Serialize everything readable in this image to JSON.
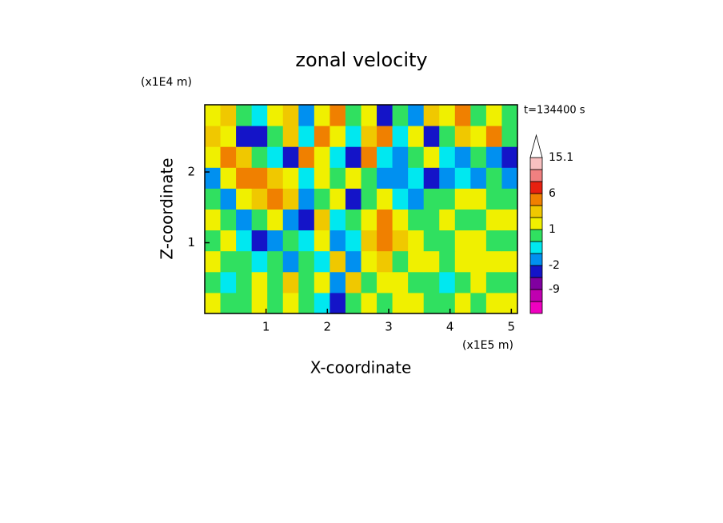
{
  "chart_data": {
    "type": "contour",
    "title": "zonal velocity",
    "time_label": "t=134400 s",
    "x_label": "X-coordinate",
    "x_unit": "(x1E5 m)",
    "y_label": "Z-coordinate",
    "y_unit": "(x1E4 m)",
    "xlim": [
      0,
      5.1
    ],
    "xticks": [
      1,
      2,
      3,
      4,
      5
    ],
    "ylim": [
      0,
      2.95
    ],
    "yticks": [
      1,
      2
    ],
    "levels": [
      -15,
      -12,
      -9,
      -5,
      -2,
      -1,
      0,
      1,
      2,
      3,
      6,
      9,
      12,
      15.1
    ],
    "colors": [
      "#f000c0",
      "#c000b0",
      "#8000a0",
      "#1414c8",
      "#0090f0",
      "#00e8f0",
      "#30e060",
      "#f0f000",
      "#f0c800",
      "#f08000",
      "#e82010",
      "#f08080",
      "#f8c0c0"
    ],
    "over_color": "#ffffff",
    "colorbar_ticks": [
      15.1,
      6,
      1,
      -2,
      -9
    ],
    "z": [
      [
        1.5,
        0.5,
        0.5,
        1.5,
        0.5,
        1.5,
        0.5,
        -0.5,
        -3,
        0.5,
        1.5,
        0.5,
        1.5,
        1.5,
        0.5,
        0.5,
        1.5,
        0.5,
        1.5,
        1.5
      ],
      [
        0.5,
        -0.5,
        0.5,
        1.5,
        0.5,
        2.5,
        0.5,
        1.5,
        -1.5,
        2.5,
        0.5,
        1.5,
        1.5,
        0.5,
        0.5,
        -0.5,
        0.5,
        1.5,
        0.5,
        0.5
      ],
      [
        1.5,
        0.5,
        0.5,
        -0.5,
        0.5,
        -1.5,
        0.5,
        -0.5,
        2.5,
        -1.5,
        1.5,
        2.5,
        0.5,
        1.5,
        1.5,
        0.5,
        1.5,
        1.5,
        1.5,
        1.5
      ],
      [
        0.5,
        1.5,
        -0.5,
        -3,
        -1.5,
        0.5,
        -0.5,
        1.5,
        -1.5,
        -0.5,
        2.5,
        3.5,
        2.5,
        1.5,
        0.5,
        0.5,
        1.5,
        1.5,
        0.5,
        0.5
      ],
      [
        1.5,
        0.5,
        -1.5,
        0.5,
        1.5,
        -1.5,
        -3,
        2.5,
        -0.5,
        0.5,
        1.5,
        3.5,
        1.5,
        0.5,
        0.5,
        1.5,
        0.5,
        0.5,
        1.5,
        1.5
      ],
      [
        0.5,
        -1.5,
        1.5,
        2.5,
        4,
        2.5,
        -1.5,
        0.5,
        1.5,
        -3,
        0.5,
        1.5,
        -0.5,
        -1.5,
        0.5,
        0.5,
        1.5,
        1.5,
        0.5,
        0.5
      ],
      [
        -1.5,
        1.5,
        4,
        3.5,
        2.5,
        1.5,
        -0.5,
        1.5,
        0.5,
        1.5,
        0.5,
        -1.5,
        -1.5,
        -0.5,
        -3,
        -1.5,
        -0.5,
        -1.5,
        0.5,
        -1.5
      ],
      [
        1.5,
        3.5,
        2.5,
        0.5,
        -0.5,
        -3,
        3.5,
        1.5,
        -0.5,
        -3,
        4,
        -0.5,
        -1.5,
        0.5,
        1.5,
        -0.5,
        -1.5,
        0.5,
        -1.5,
        -3
      ],
      [
        2.5,
        1.5,
        -3,
        -4,
        0.5,
        2.5,
        -0.5,
        3.5,
        1.5,
        -0.5,
        2.5,
        4,
        -0.5,
        1.5,
        -3,
        0.5,
        2.5,
        1.5,
        3.5,
        0.5
      ],
      [
        1.5,
        2.5,
        0.5,
        -0.5,
        1.5,
        2.5,
        -1.5,
        1.5,
        3,
        0.5,
        1.5,
        -3,
        0.5,
        -1.5,
        2.5,
        1.5,
        3,
        0.5,
        1.5,
        0.5
      ]
    ]
  }
}
